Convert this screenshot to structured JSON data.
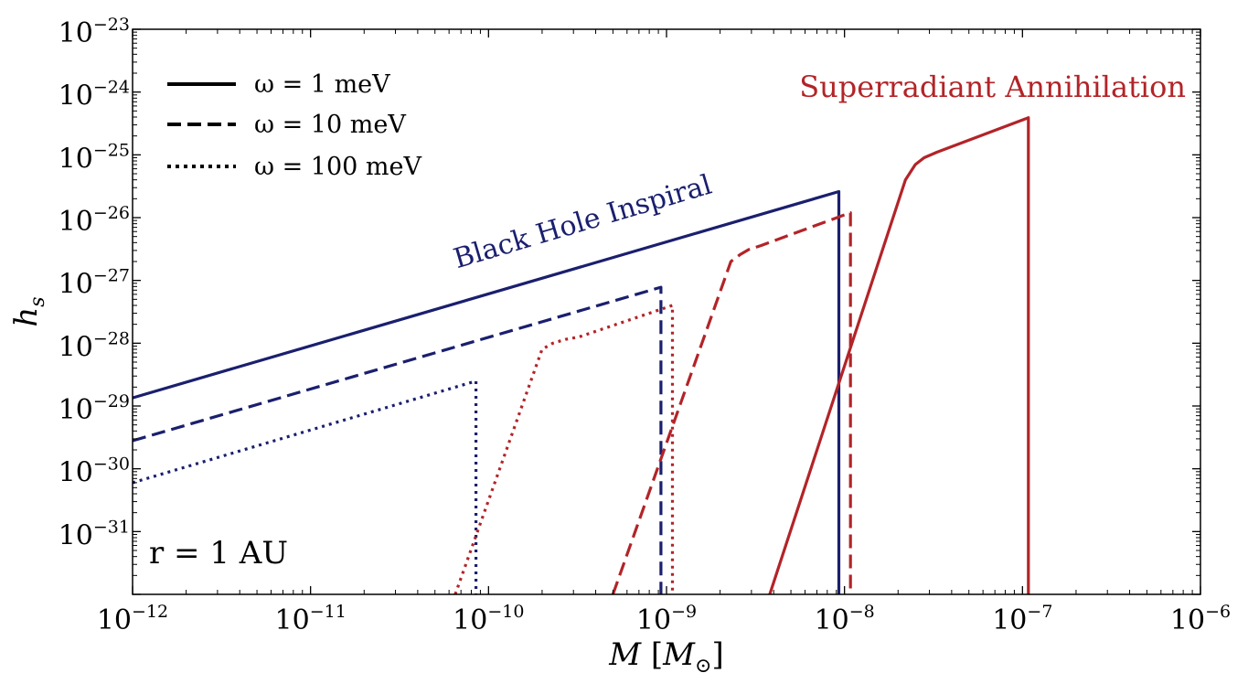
{
  "chart_data": {
    "type": "line",
    "x_scale": "log",
    "y_scale": "log",
    "xlim": [
      1e-12,
      1e-06
    ],
    "ylim": [
      1e-32,
      1e-23
    ],
    "xlabel": {
      "main": "M ",
      "open": "[",
      "sub": "M",
      "subscript": "⊙",
      "close": "]"
    },
    "ylabel": {
      "main": "h",
      "subscript": "s"
    },
    "x_ticks": [
      {
        "base": "10",
        "exp": "−12"
      },
      {
        "base": "10",
        "exp": "−11"
      },
      {
        "base": "10",
        "exp": "−10"
      },
      {
        "base": "10",
        "exp": "−9"
      },
      {
        "base": "10",
        "exp": "−8"
      },
      {
        "base": "10",
        "exp": "−7"
      },
      {
        "base": "10",
        "exp": "−6"
      }
    ],
    "y_ticks": [
      {
        "base": "10",
        "exp": "−23"
      },
      {
        "base": "10",
        "exp": "−24"
      },
      {
        "base": "10",
        "exp": "−25"
      },
      {
        "base": "10",
        "exp": "−26"
      },
      {
        "base": "10",
        "exp": "−27"
      },
      {
        "base": "10",
        "exp": "−28"
      },
      {
        "base": "10",
        "exp": "−29"
      },
      {
        "base": "10",
        "exp": "−30"
      },
      {
        "base": "10",
        "exp": "−31"
      }
    ],
    "grid": false,
    "legend": {
      "placement": "top-left",
      "entries": [
        {
          "label": "ω = 1 meV",
          "dash": "solid"
        },
        {
          "label": "ω = 10 meV",
          "dash": "dashed"
        },
        {
          "label": "ω = 100 meV",
          "dash": "dotted"
        }
      ]
    },
    "annotations": [
      {
        "text": "Black Hole Inspiral",
        "color": "#1a1f6e"
      },
      {
        "text": "Superradiant Annihilation",
        "color": "#b22428"
      },
      {
        "text": "r = 1 AU",
        "color": "#000000"
      }
    ],
    "colors": {
      "inspiral": "#1a1f6e",
      "annihilation": "#b22428"
    },
    "series": [
      {
        "group": "inspiral",
        "omega": "1 meV",
        "dash": "solid",
        "points": [
          [
            1e-12,
            1.35e-29
          ],
          [
            9.3e-09,
            2.6e-26
          ],
          [
            9.3e-09,
            1e-32
          ]
        ]
      },
      {
        "group": "inspiral",
        "omega": "10 meV",
        "dash": "dashed",
        "points": [
          [
            1e-12,
            2.8e-30
          ],
          [
            9.3e-10,
            7.8e-28
          ],
          [
            9.3e-10,
            1e-32
          ]
        ]
      },
      {
        "group": "inspiral",
        "omega": "100 meV",
        "dash": "dotted",
        "points": [
          [
            1e-12,
            6e-31
          ],
          [
            8.5e-11,
            2.5e-29
          ],
          [
            8.5e-11,
            1e-32
          ]
        ]
      },
      {
        "group": "annihilation",
        "omega": "1 meV",
        "dash": "solid",
        "points": [
          [
            3.8e-09,
            1e-32
          ],
          [
            2.2e-08,
            4e-26
          ],
          [
            2.5e-08,
            7e-26
          ],
          [
            2.8e-08,
            9e-26
          ],
          [
            3.3e-08,
            1.1e-25
          ],
          [
            1.08e-07,
            3.9e-25
          ],
          [
            1.08e-07,
            1e-32
          ]
        ]
      },
      {
        "group": "annihilation",
        "omega": "10 meV",
        "dash": "dashed",
        "points": [
          [
            5e-10,
            1e-32
          ],
          [
            2.3e-09,
            2e-27
          ],
          [
            2.6e-09,
            2.6e-27
          ],
          [
            2.9e-09,
            3.1e-27
          ],
          [
            3.4e-09,
            3.6e-27
          ],
          [
            1.08e-08,
            1.2e-26
          ],
          [
            1.08e-08,
            1e-32
          ]
        ]
      },
      {
        "group": "annihilation",
        "omega": "100 meV",
        "dash": "dotted",
        "points": [
          [
            6.5e-11,
            1e-32
          ],
          [
            2e-10,
            8e-29
          ],
          [
            2.3e-10,
            1e-28
          ],
          [
            2.7e-10,
            1.15e-28
          ],
          [
            3.2e-10,
            1.25e-28
          ],
          [
            1.08e-09,
            4e-28
          ],
          [
            1.08e-09,
            1e-32
          ]
        ]
      }
    ]
  }
}
